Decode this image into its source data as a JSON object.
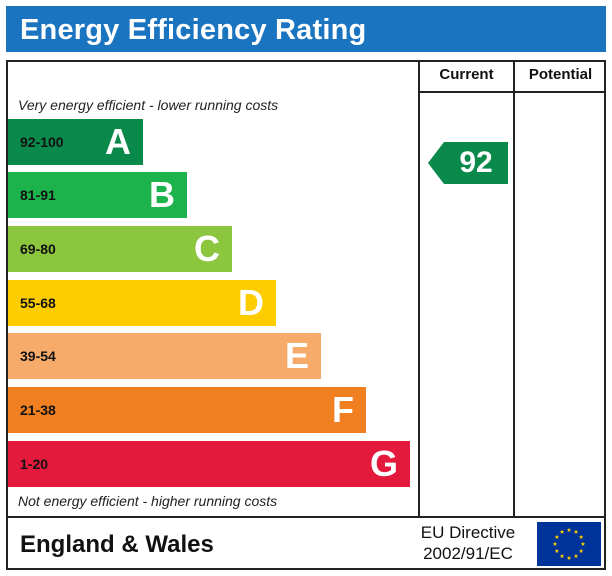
{
  "header": {
    "title": "Energy Efficiency Rating"
  },
  "columns": {
    "current": "Current",
    "potential": "Potential"
  },
  "captions": {
    "top": "Very energy efficient - lower running costs",
    "bottom": "Not energy efficient - higher running costs"
  },
  "bands": [
    {
      "range": "92-100",
      "letter": "A",
      "color": "#0a8a4a"
    },
    {
      "range": "81-91",
      "letter": "B",
      "color": "#1db34c"
    },
    {
      "range": "69-80",
      "letter": "C",
      "color": "#8cc63f"
    },
    {
      "range": "55-68",
      "letter": "D",
      "color": "#ffcc00"
    },
    {
      "range": "39-54",
      "letter": "E",
      "color": "#f7ab6b"
    },
    {
      "range": "21-38",
      "letter": "F",
      "color": "#f07f22"
    },
    {
      "range": "1-20",
      "letter": "G",
      "color": "#e31a3c"
    }
  ],
  "chart_data": {
    "type": "bar",
    "categories": [
      "92-100",
      "81-91",
      "69-80",
      "55-68",
      "39-54",
      "21-38",
      "1-20"
    ],
    "values": [
      100,
      91,
      80,
      68,
      54,
      38,
      20
    ],
    "current_rating": {
      "value": 92,
      "band": "A"
    },
    "potential_rating": null
  },
  "current": {
    "value": "92",
    "color": "#0a8a4a"
  },
  "footer": {
    "region": "England & Wales",
    "directive_line1": "EU Directive",
    "directive_line2": "2002/91/EC"
  },
  "flag": {
    "background": "#003399",
    "star_color": "#ffcc00"
  }
}
